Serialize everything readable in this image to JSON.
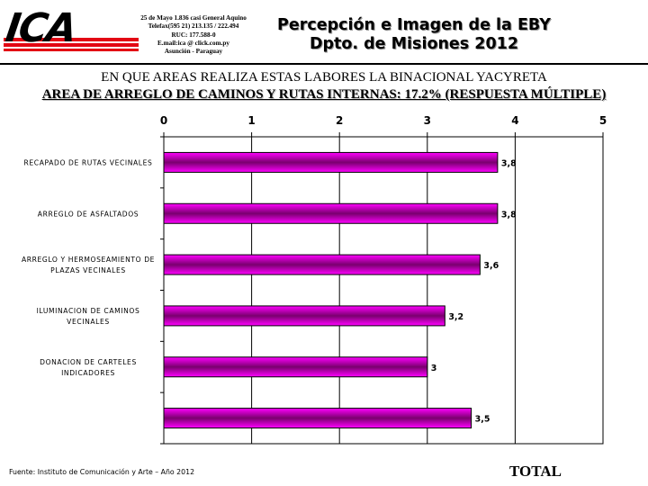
{
  "header": {
    "logo_text": "ICA",
    "contact_lines": [
      "25 de Mayo 1.836 casi General Aquino",
      "Telefax(595 21) 213.135 / 222.494",
      "RUC: 177.588-0",
      "E.mail:ica @ click.com.py",
      "Asunción - Paraguay"
    ],
    "title_line1": "Percepción e Imagen de la EBY",
    "title_line2": "Dpto. de Misiones 2012"
  },
  "question": "EN QUE AREAS REALIZA ESTAS LABORES LA BINACIONAL YACYRETA",
  "subtitle": "AREA DE ARREGLO DE CAMINOS Y RUTAS INTERNAS: 17.2% (RESPUESTA MÚLTIPLE)",
  "footer": {
    "source": "Fuente: Instituto de Comunicación y Arte – Año 2012",
    "total_label": "TOTAL"
  },
  "colors": {
    "bar": "#ff00ff",
    "bar_center": "#7a006e",
    "accent_red": "#e30613"
  },
  "chart_data": {
    "type": "bar",
    "orientation": "horizontal",
    "categories": [
      [
        "RECAPADO DE RUTAS VECINALES"
      ],
      [
        "ARREGLO DE ASFALTADOS"
      ],
      [
        "ARREGLO Y HERMOSEAMIENTO DE",
        "PLAZAS VECINALES"
      ],
      [
        "ILUMINACION DE CAMINOS",
        "VECINALES"
      ],
      [
        "DONACION DE CARTELES",
        "INDICADORES"
      ],
      [
        ""
      ]
    ],
    "values": [
      3.8,
      3.8,
      3.6,
      3.2,
      3.0,
      3.5
    ],
    "value_labels": [
      "3,8",
      "3,8",
      "3,6",
      "3,2",
      "3",
      "3,5"
    ],
    "xlim": [
      0,
      5
    ],
    "xticks": [
      0,
      1,
      2,
      3,
      4,
      5
    ],
    "xtick_labels": [
      "0",
      "1",
      "2",
      "3",
      "4",
      "5"
    ],
    "axis_position": "top",
    "grid": true
  }
}
